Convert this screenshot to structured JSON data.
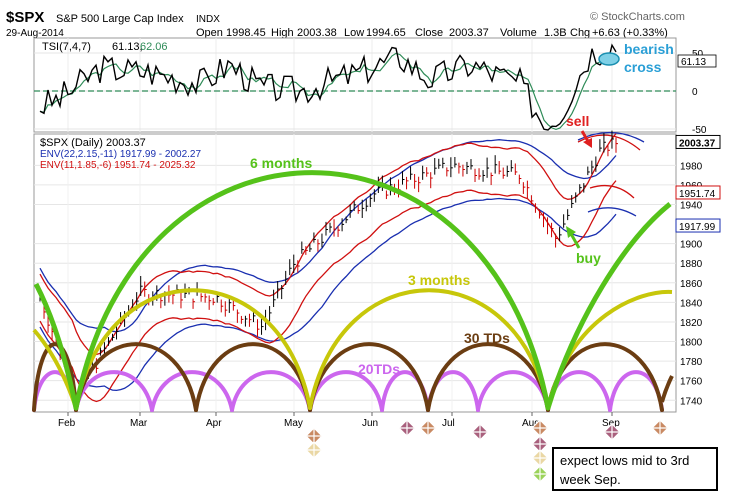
{
  "header": {
    "symbol": "$SPX",
    "name": "S&P 500 Large Cap Index",
    "exchange": "INDX",
    "source": "© StockCharts.com",
    "date": "29-Aug-2014",
    "open_label": "Open",
    "open": "1998.45",
    "high_label": "High",
    "high": "2003.38",
    "low_label": "Low",
    "low": "1994.65",
    "close_label": "Close",
    "close": "2003.37",
    "volume_label": "Volume",
    "volume": "1.3B",
    "chg_label": "Chg",
    "chg": "+6.63 (+0.33%)"
  },
  "tsi": {
    "legend": "TSI(7,4,7)",
    "value": "61.13,",
    "signal": "62.06",
    "axis_ticks": [
      "50",
      "0",
      "-50"
    ],
    "last_value_label": "61.13",
    "line_color": "#000000",
    "signal_color": "#2e8b57"
  },
  "price": {
    "legend": "$SPX (Daily) 2003.37",
    "env1": "ENV(22,2.15,-11) 1917.99 - 2002.27",
    "env2": "ENV(11,1.85,-6) 1951.74 - 2025.32",
    "env1_color": "#1a2fb0",
    "env2_color": "#d01010",
    "axis_ticks": [
      "1980",
      "1960",
      "1940",
      "1900",
      "1880",
      "1860",
      "1840",
      "1820",
      "1800",
      "1780",
      "1760",
      "1740"
    ],
    "value_labels": [
      "2003.37",
      "1951.74",
      "1917.99"
    ]
  },
  "x_axis": [
    "Feb",
    "Mar",
    "Apr",
    "May",
    "Jun",
    "Jul",
    "Aug",
    "Sep"
  ],
  "annotations": {
    "bearish": "bearish",
    "cross": "cross",
    "sell": "sell",
    "buy": "buy",
    "six_months": "6 months",
    "three_months": "3 months",
    "thirty_tds": "30 TDs",
    "twenty_tds": "20TDs",
    "note": "expect lows mid to 3rd week Sep.",
    "cycle_colors": {
      "six_months": "#55c21a",
      "three_months": "#c7c70a",
      "thirty_tds": "#6b3d12",
      "twenty_tds": "#cc66ee"
    }
  },
  "chart_data": [
    {
      "type": "line",
      "title": "TSI(7,4,7)",
      "x": [
        "Feb",
        "Mar",
        "Apr",
        "May",
        "Jun",
        "Jul",
        "Aug",
        "Sep"
      ],
      "series": [
        {
          "name": "TSI(7,4,7)",
          "values": [
            -25,
            30,
            15,
            5,
            40,
            35,
            -45,
            61.13
          ]
        },
        {
          "name": "Signal",
          "values": [
            -20,
            25,
            10,
            8,
            35,
            30,
            -40,
            62.06
          ]
        }
      ],
      "ylim": [
        -60,
        70
      ]
    },
    {
      "type": "line",
      "title": "$SPX (Daily) 2003.37",
      "x": [
        "Feb",
        "Mar",
        "Apr",
        "May",
        "Jun",
        "Jul",
        "Aug",
        "Sep"
      ],
      "series": [
        {
          "name": "$SPX",
          "values": [
            1775,
            1850,
            1840,
            1880,
            1950,
            1970,
            1925,
            2003.37
          ]
        },
        {
          "name": "ENV(22,2.15,-11)",
          "values": [
            1745,
            1815,
            1830,
            1860,
            1920,
            1950,
            1930,
            1917.99
          ]
        },
        {
          "name": "ENV(11,1.85,-6)",
          "values": [
            1760,
            1845,
            1840,
            1875,
            1945,
            1965,
            1935,
            1951.74
          ]
        }
      ],
      "ylim": [
        1730,
        2010
      ]
    }
  ]
}
